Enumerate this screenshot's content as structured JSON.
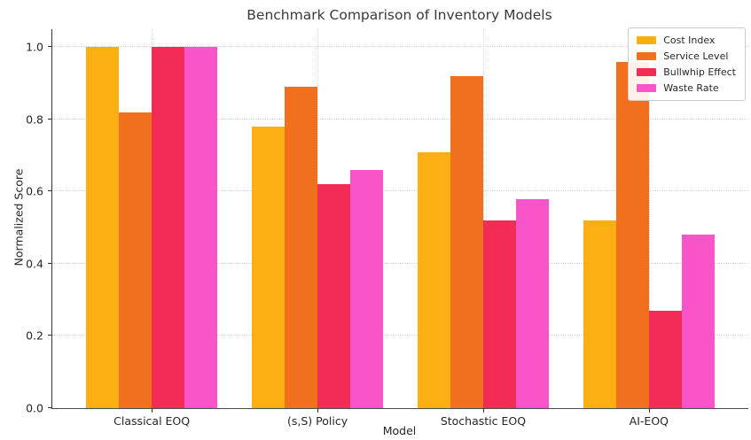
{
  "chart_data": {
    "type": "bar",
    "title": "Benchmark Comparison of Inventory Models",
    "xlabel": "Model",
    "ylabel": "Normalized Score",
    "categories": [
      "Classical EOQ",
      "(s,S) Policy",
      "Stochastic EOQ",
      "AI-EOQ"
    ],
    "series": [
      {
        "name": "Cost Index",
        "color": "#FCAF13",
        "values": [
          1.0,
          0.78,
          0.71,
          0.52
        ]
      },
      {
        "name": "Service Level",
        "color": "#F1701E",
        "values": [
          0.82,
          0.89,
          0.92,
          0.96
        ]
      },
      {
        "name": "Bullwhip Effect",
        "color": "#F22C55",
        "values": [
          1.0,
          0.62,
          0.52,
          0.27
        ]
      },
      {
        "name": "Waste Rate",
        "color": "#F955C8",
        "values": [
          1.0,
          0.66,
          0.58,
          0.48
        ]
      }
    ],
    "ylim": [
      0,
      1.05
    ],
    "yticks": [
      "0.0",
      "0.2",
      "0.4",
      "0.6",
      "0.8",
      "1.0"
    ],
    "grid": true,
    "grid_style": "dotted",
    "legend_position": "upper right",
    "x_inner_margin": 0.6,
    "x_units": 4.2
  },
  "colors": {
    "background": "#ffffff",
    "axis": "#333333",
    "grid": "#d6d6d6",
    "text": "#262626",
    "title": "#3a3a3a",
    "legend_border": "#cccccc"
  }
}
